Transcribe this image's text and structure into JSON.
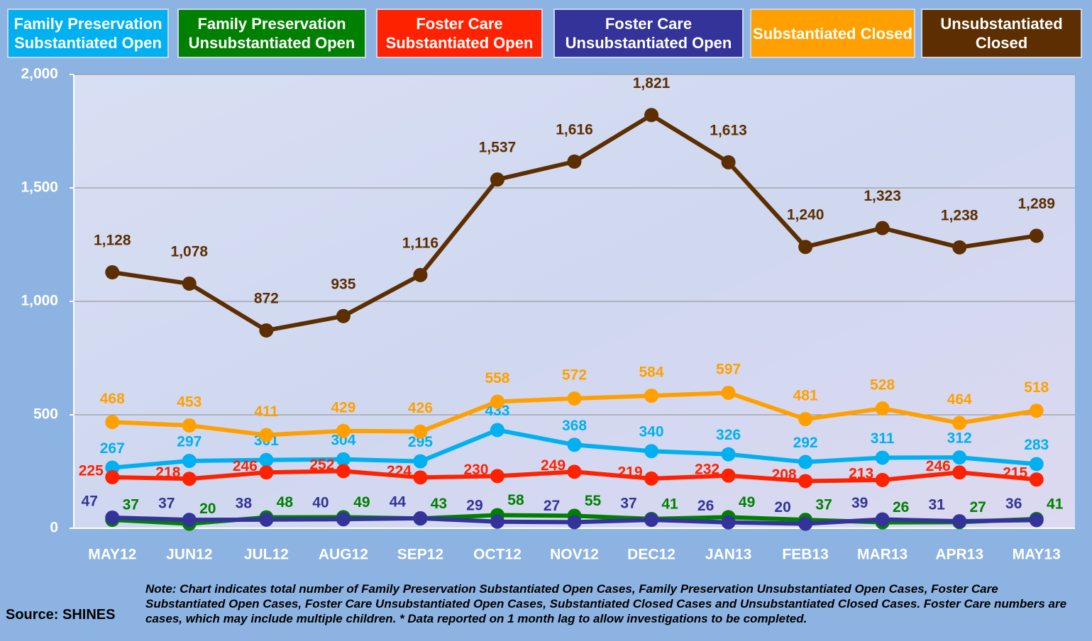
{
  "chart_data": {
    "type": "line",
    "categories": [
      "MAY12",
      "JUN12",
      "JUL12",
      "AUG12",
      "SEP12",
      "OCT12",
      "NOV12",
      "DEC12",
      "JAN13",
      "FEB13",
      "MAR13",
      "APR13",
      "MAY13"
    ],
    "series": [
      {
        "name": "Family Preservation Substantiated Open",
        "color": "#00b0f0",
        "values": [
          267,
          297,
          301,
          304,
          295,
          433,
          368,
          340,
          326,
          292,
          311,
          312,
          283
        ]
      },
      {
        "name": "Family Preservation Unsubstantiated Open",
        "color": "#008000",
        "values": [
          37,
          20,
          48,
          49,
          43,
          58,
          55,
          41,
          49,
          37,
          26,
          27,
          41
        ]
      },
      {
        "name": "Foster Care Substantiated Open",
        "color": "#ff2200",
        "values": [
          225,
          218,
          246,
          252,
          224,
          230,
          249,
          219,
          232,
          208,
          213,
          246,
          215
        ]
      },
      {
        "name": "Foster Care Unsubstantiated Open",
        "color": "#333399",
        "values": [
          47,
          37,
          38,
          40,
          44,
          29,
          27,
          37,
          26,
          20,
          39,
          31,
          36
        ]
      },
      {
        "name": "Substantiated Closed",
        "color": "#ffa000",
        "values": [
          468,
          453,
          411,
          429,
          426,
          558,
          572,
          584,
          597,
          481,
          528,
          464,
          518
        ]
      },
      {
        "name": "Unsubstantiated Closed",
        "color": "#5c2e00",
        "values": [
          1128,
          1078,
          872,
          935,
          1116,
          1537,
          1616,
          1821,
          1613,
          1240,
          1323,
          1238,
          1289
        ],
        "value_labels": [
          "1,128",
          "1,078",
          "872",
          "935",
          "1,116",
          "1,537",
          "1,616",
          "1,821",
          "1,613",
          "1,240",
          "1,323",
          "1,238",
          "1,289"
        ]
      }
    ],
    "ylim": [
      0,
      2000
    ],
    "yticks": [
      0,
      500,
      {
        "value": 1000,
        "label": "1,000"
      },
      {
        "value": 1500,
        "label": "1,500"
      },
      {
        "value": 2000,
        "label": "2,000"
      }
    ],
    "grid": true,
    "note": "Note:  Chart indicates total number of Family Preservation Substantiated Open Cases, Family Preservation Unsubstantiated Open Cases, Foster Care Substantiated Open Cases, Foster Care Unsubstantiated Open Cases, Substantiated Closed Cases and Unsubstantiated Closed Cases. Foster Care numbers are cases, which may include multiple children.  * Data reported on 1 month lag to allow investigations to be completed.",
    "source": "Source: SHINES"
  }
}
